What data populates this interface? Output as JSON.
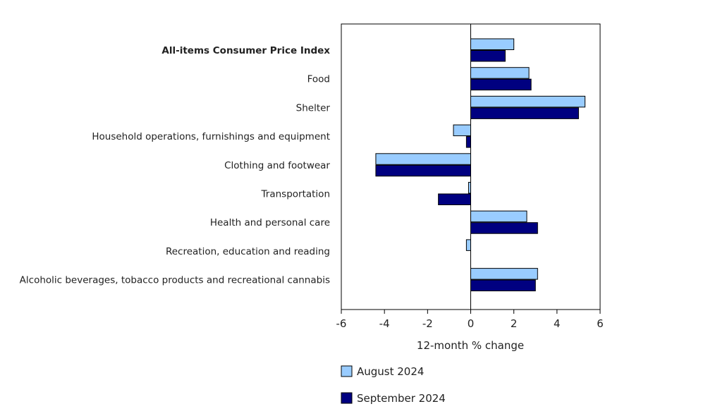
{
  "chart_data": {
    "type": "bar",
    "orientation": "horizontal",
    "categories": [
      "All-items Consumer Price Index",
      "Food",
      "Shelter",
      "Household operations, furnishings and equipment",
      "Clothing and footwear",
      "Transportation",
      "Health and personal care",
      "Recreation, education and reading",
      "Alcoholic beverages, tobacco products and recreational cannabis"
    ],
    "bold_categories": [
      "All-items Consumer Price Index"
    ],
    "series": [
      {
        "name": "August 2024",
        "color": "#99ccff",
        "values": [
          2.0,
          2.7,
          5.3,
          -0.8,
          -4.4,
          -0.1,
          2.6,
          -0.2,
          3.1
        ]
      },
      {
        "name": "September 2024",
        "color": "#000080",
        "values": [
          1.6,
          2.8,
          5.0,
          -0.2,
          -4.4,
          -1.5,
          3.1,
          0.0,
          3.0
        ]
      }
    ],
    "xlabel": "12-month % change",
    "xlim": [
      -6,
      6
    ],
    "xticks": [
      "-6",
      "-4",
      "-2",
      "0",
      "2",
      "4",
      "6"
    ],
    "grid": false,
    "legend_position": "bottom"
  }
}
